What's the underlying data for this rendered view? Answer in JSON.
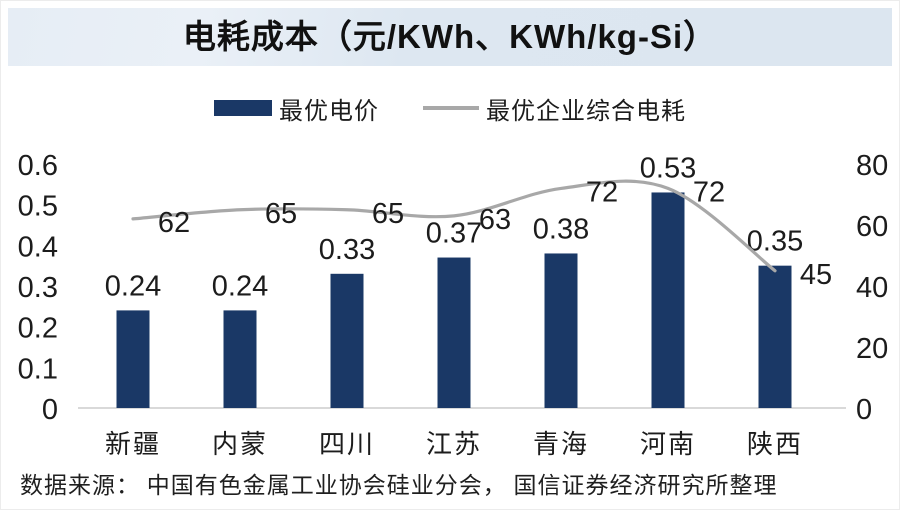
{
  "title": "电耗成本（元/KWh、KWh/kg-Si）",
  "footer": "数据来源： 中国有色金属工业协会硅业分会， 国信证券经济研究所整理",
  "colors": {
    "bar": "#1a3866",
    "line": "#a8a8a8",
    "title_band": "#dde7f1",
    "axis_line": "#d9d9d9",
    "text": "#1c1c1c"
  },
  "chart_data": {
    "type": "bar",
    "subtype": "bar+line-dual-axis",
    "title": "电耗成本（元/KWh、KWh/kg-Si）",
    "categories": [
      "新疆",
      "内蒙",
      "四川",
      "江苏",
      "青海",
      "河南",
      "陕西"
    ],
    "series": [
      {
        "name": "最优电价",
        "type": "bar",
        "axis": "left",
        "color": "#1a3866",
        "values": [
          0.24,
          0.24,
          0.33,
          0.37,
          0.38,
          0.53,
          0.35
        ]
      },
      {
        "name": "最优企业综合电耗",
        "type": "line",
        "axis": "right",
        "color": "#a8a8a8",
        "values": [
          62,
          65,
          65,
          63,
          72,
          72,
          45
        ]
      }
    ],
    "left_axis": {
      "min": 0,
      "max": 0.6,
      "ticks": [
        "0",
        "0.1",
        "0.2",
        "0.3",
        "0.4",
        "0.5",
        "0.6"
      ]
    },
    "right_axis": {
      "min": 0,
      "max": 80,
      "ticks": [
        "0",
        "20",
        "40",
        "60",
        "80"
      ]
    },
    "grid": false,
    "legend_position": "top",
    "data_labels": true,
    "source_note": "数据来源： 中国有色金属工业协会硅业分会， 国信证券经济研究所整理"
  }
}
